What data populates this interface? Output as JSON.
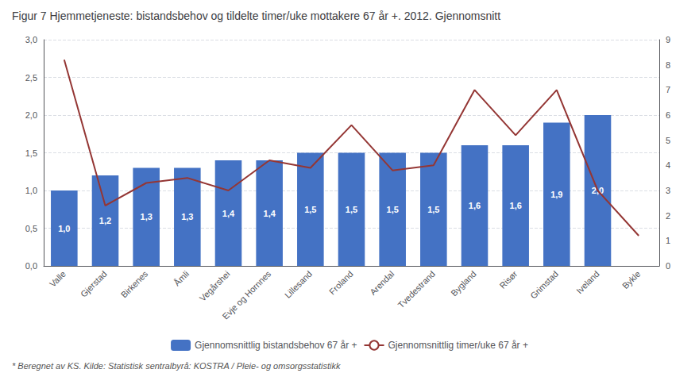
{
  "chart_data": {
    "type": "bar",
    "title": "Figur 7 Hjemmetjeneste: bistandsbehov og tildelte timer/uke mottakere 67 år +. 2012. Gjennomsnitt",
    "footnote": "* Beregnet av KS. Kilde: Statistisk sentralbyrå: KOSTRA / Pleie- og omsorgsstatistikk",
    "categories": [
      "Valle",
      "Gjerstad",
      "Birkenes",
      "Åmli",
      "Vegårshei",
      "Evje og Hornnes",
      "Lillesand",
      "Froland",
      "Arendal",
      "Tvedestrand",
      "Bygland",
      "Risør",
      "Grimstad",
      "Iveland",
      "Bykle"
    ],
    "series": [
      {
        "name": "Gjennomsnittlig bistandsbehov 67 år +",
        "type": "bar",
        "color": "#4472C4",
        "values": [
          1.0,
          1.2,
          1.3,
          1.3,
          1.4,
          1.4,
          1.5,
          1.5,
          1.5,
          1.5,
          1.6,
          1.6,
          1.9,
          2.0,
          null
        ],
        "data_labels": true,
        "value_labels": [
          "1,0",
          "1,2",
          "1,3",
          "1,3",
          "1,4",
          "1,4",
          "1,5",
          "1,5",
          "1,5",
          "1,5",
          "1,6",
          "1,6",
          "1,9",
          "2,0",
          null
        ]
      },
      {
        "name": "Gjennomsnittlig timer/uke 67 år +",
        "type": "line",
        "color": "#943634",
        "axis": "y2",
        "values": [
          8.2,
          2.4,
          3.3,
          3.5,
          3.0,
          4.2,
          3.9,
          5.6,
          3.8,
          4.0,
          7.0,
          5.2,
          7.0,
          3.0,
          1.2
        ]
      }
    ],
    "ylim": [
      0,
      3.0
    ],
    "yticks": [
      {
        "value": 0.0,
        "label": "0,0"
      },
      {
        "value": 0.5,
        "label": "0,5"
      },
      {
        "value": 1.0,
        "label": "1,0"
      },
      {
        "value": 1.5,
        "label": "1,5"
      },
      {
        "value": 2.0,
        "label": "2,0"
      },
      {
        "value": 2.5,
        "label": "2,5"
      },
      {
        "value": 3.0,
        "label": "3,0"
      }
    ],
    "y2lim": [
      0,
      9
    ],
    "y2ticks": [
      0,
      1,
      2,
      3,
      4,
      5,
      6,
      7,
      8,
      9
    ],
    "grid": true,
    "legend": "bottom"
  }
}
